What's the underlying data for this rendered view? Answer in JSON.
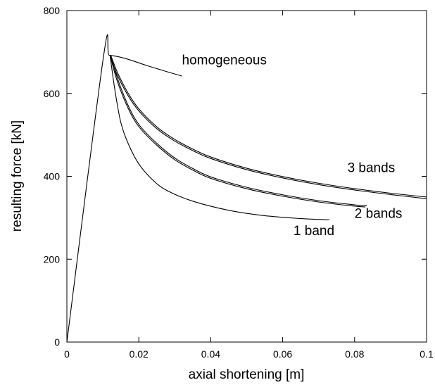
{
  "chart_data": {
    "type": "line",
    "title": "",
    "xlabel": "axial shortening [m]",
    "ylabel": "resulting force [kN]",
    "xlim": [
      0,
      0.1
    ],
    "ylim": [
      0,
      800
    ],
    "xticks": [
      0,
      0.02,
      0.04,
      0.06,
      0.08,
      0.1
    ],
    "xtick_labels": [
      "0",
      "0.02",
      "0.04",
      "0.06",
      "0.08",
      "0.1"
    ],
    "yticks": [
      0,
      200,
      400,
      600,
      800
    ],
    "ytick_labels": [
      "0",
      "200",
      "400",
      "600",
      "800"
    ],
    "grid": false,
    "legend": "none (curves labeled directly)",
    "series": [
      {
        "name": "homogeneous",
        "x": [
          0,
          0.0102,
          0.0118,
          0.016,
          0.022,
          0.028,
          0.032
        ],
        "y": [
          0,
          690,
          692,
          685,
          668,
          652,
          642
        ]
      },
      {
        "name": "1 band",
        "x": [
          0.012,
          0.0125,
          0.0135,
          0.015,
          0.017,
          0.02,
          0.024,
          0.028,
          0.035,
          0.045,
          0.055,
          0.065,
          0.073
        ],
        "y": [
          692,
          660,
          600,
          530,
          480,
          430,
          390,
          365,
          340,
          318,
          305,
          298,
          295
        ]
      },
      {
        "name": "2 bands (a)",
        "x": [
          0.012,
          0.014,
          0.017,
          0.02,
          0.025,
          0.03,
          0.035,
          0.04,
          0.05,
          0.06,
          0.07,
          0.08,
          0.083
        ],
        "y": [
          692,
          630,
          565,
          520,
          475,
          440,
          415,
          395,
          370,
          352,
          338,
          328,
          326
        ]
      },
      {
        "name": "2 bands (b)",
        "x": [
          0.0122,
          0.0142,
          0.0172,
          0.0202,
          0.0252,
          0.0302,
          0.0352,
          0.0402,
          0.0502,
          0.0602,
          0.0702,
          0.0802,
          0.0834
        ],
        "y": [
          692,
          633,
          568,
          523,
          478,
          443,
          418,
          398,
          373,
          355,
          341,
          331,
          329
        ]
      },
      {
        "name": "3 bands (a)",
        "x": [
          0.012,
          0.014,
          0.017,
          0.02,
          0.025,
          0.03,
          0.035,
          0.04,
          0.05,
          0.06,
          0.07,
          0.08,
          0.09,
          0.1
        ],
        "y": [
          692,
          645,
          595,
          558,
          515,
          485,
          462,
          443,
          416,
          396,
          380,
          367,
          356,
          346
        ]
      },
      {
        "name": "3 bands (b)",
        "x": [
          0.0122,
          0.0142,
          0.0172,
          0.0202,
          0.0252,
          0.0302,
          0.0352,
          0.0402,
          0.0502,
          0.0602,
          0.0702,
          0.0802,
          0.0902,
          0.1
        ],
        "y": [
          692,
          648,
          598,
          561,
          518,
          488,
          465,
          446,
          419,
          399,
          383,
          370,
          359,
          350
        ]
      }
    ],
    "annotations": [
      {
        "text": "homogeneous",
        "x": 0.032,
        "y": 670
      },
      {
        "text": "3 bands",
        "x": 0.078,
        "y": 410
      },
      {
        "text": "2 bands",
        "x": 0.08,
        "y": 300
      },
      {
        "text": "1 band",
        "x": 0.063,
        "y": 258
      }
    ]
  }
}
